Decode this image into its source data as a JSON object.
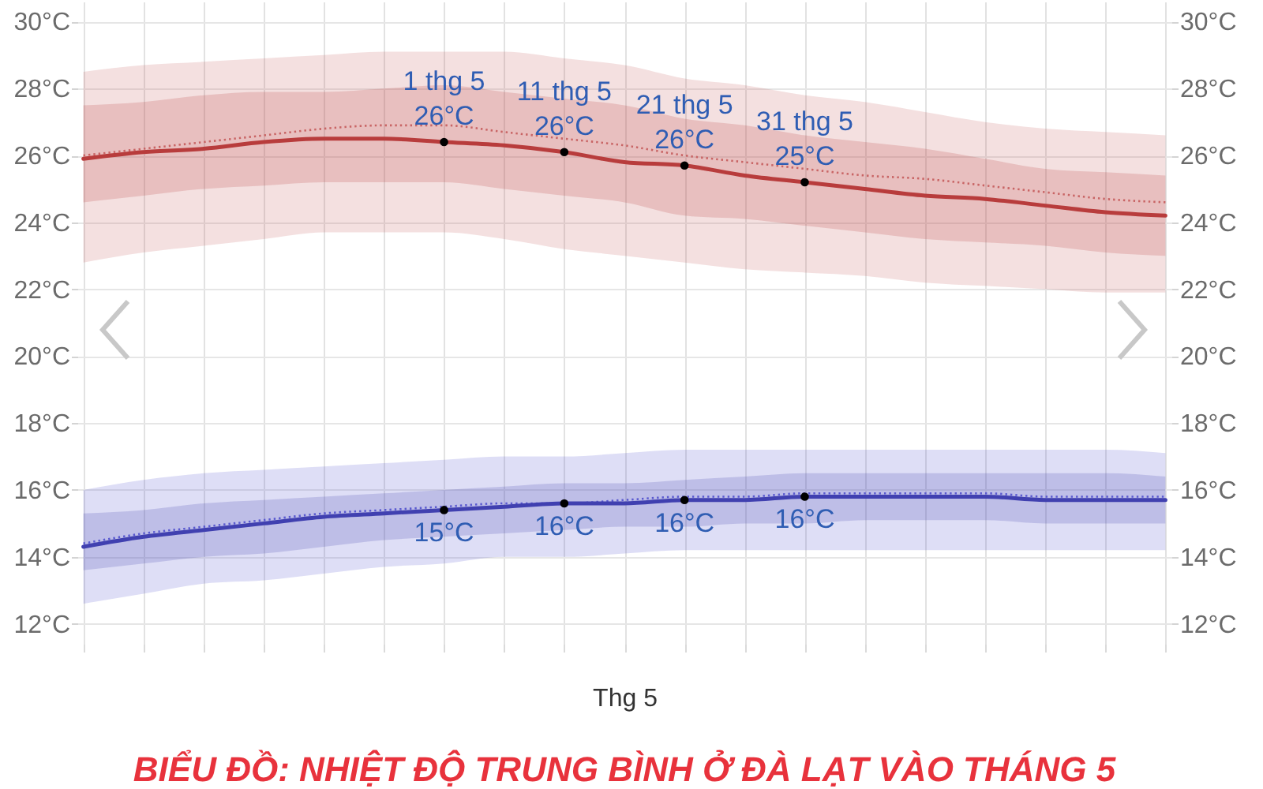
{
  "chart_data": {
    "type": "line",
    "title": "BIỂU ĐỒ: NHIỆT ĐỘ TRUNG BÌNH Ở ĐÀ LẠT VÀO THÁNG 5",
    "xlabel": "Thg 5",
    "categories": [
      null,
      null,
      null,
      null,
      null,
      null,
      null,
      null,
      null,
      null,
      null,
      null,
      null,
      null,
      null,
      null,
      null,
      null,
      null
    ],
    "ylim": [
      11.4,
      30.6
    ],
    "yticks": [
      {
        "value": 12,
        "label": "12°C"
      },
      {
        "value": 14,
        "label": "14°C"
      },
      {
        "value": 16,
        "label": "16°C"
      },
      {
        "value": 18,
        "label": "18°C"
      },
      {
        "value": 20,
        "label": "20°C"
      },
      {
        "value": 22,
        "label": "22°C"
      },
      {
        "value": 24,
        "label": "24°C"
      },
      {
        "value": 26,
        "label": "26°C"
      },
      {
        "value": 28,
        "label": "28°C"
      },
      {
        "value": 30,
        "label": "30°C"
      }
    ],
    "y2lim": [
      11.4,
      30.6
    ],
    "y2ticks": [
      {
        "value": 12,
        "label": "12°C"
      },
      {
        "value": 14,
        "label": "14°C"
      },
      {
        "value": 16,
        "label": "16°C"
      },
      {
        "value": 18,
        "label": "18°C"
      },
      {
        "value": 20,
        "label": "20°C"
      },
      {
        "value": 22,
        "label": "22°C"
      },
      {
        "value": 24,
        "label": "24°C"
      },
      {
        "value": 26,
        "label": "26°C"
      },
      {
        "value": 28,
        "label": "28°C"
      },
      {
        "value": 30,
        "label": "30°C"
      }
    ],
    "grid": true,
    "series": [
      {
        "color": "#c86464",
        "line_style": "dotted",
        "values": [
          26.0,
          26.2,
          26.4,
          26.6,
          26.8,
          26.9,
          26.9,
          26.7,
          26.5,
          26.3,
          26.0,
          25.8,
          25.6,
          25.4,
          25.3,
          25.1,
          24.9,
          24.7,
          24.6
        ],
        "lower": [
          22.8,
          23.1,
          23.3,
          23.5,
          23.7,
          23.7,
          23.7,
          23.5,
          23.2,
          23.0,
          22.8,
          22.6,
          22.5,
          22.4,
          22.2,
          22.1,
          22.0,
          21.9,
          21.9
        ],
        "upper": [
          28.5,
          28.7,
          28.8,
          28.9,
          29.0,
          29.1,
          29.1,
          29.1,
          28.9,
          28.7,
          28.3,
          28.1,
          27.8,
          27.6,
          27.3,
          27.0,
          26.8,
          26.7,
          26.6
        ]
      },
      {
        "color": "#b83c3c",
        "line_style": "solid",
        "values": [
          25.9,
          26.1,
          26.2,
          26.4,
          26.5,
          26.5,
          26.4,
          26.3,
          26.1,
          25.8,
          25.7,
          25.4,
          25.2,
          25.0,
          24.8,
          24.7,
          24.5,
          24.3,
          24.2
        ],
        "lower": [
          24.6,
          24.8,
          25.0,
          25.1,
          25.2,
          25.2,
          25.2,
          25.0,
          24.8,
          24.6,
          24.2,
          24.1,
          23.9,
          23.7,
          23.5,
          23.4,
          23.3,
          23.1,
          23.0
        ],
        "upper": [
          27.5,
          27.6,
          27.8,
          27.9,
          27.9,
          28.0,
          28.1,
          27.9,
          27.7,
          27.5,
          27.1,
          26.9,
          26.6,
          26.4,
          26.2,
          25.9,
          25.6,
          25.5,
          25.4
        ]
      },
      {
        "color": "#5a5ad0",
        "line_style": "dotted",
        "values": [
          14.4,
          14.7,
          14.9,
          15.1,
          15.3,
          15.4,
          15.5,
          15.6,
          15.6,
          15.7,
          15.8,
          15.8,
          15.9,
          15.9,
          15.9,
          15.9,
          15.8,
          15.8,
          15.8
        ],
        "lower": [
          12.6,
          12.9,
          13.2,
          13.3,
          13.5,
          13.7,
          13.8,
          14.0,
          14.0,
          14.1,
          14.2,
          14.2,
          14.2,
          14.2,
          14.2,
          14.2,
          14.2,
          14.2,
          14.2
        ],
        "upper": [
          16.0,
          16.3,
          16.5,
          16.6,
          16.7,
          16.8,
          16.9,
          17.0,
          17.0,
          17.1,
          17.2,
          17.2,
          17.2,
          17.2,
          17.2,
          17.2,
          17.2,
          17.2,
          17.1
        ]
      },
      {
        "color": "#4040b0",
        "line_style": "solid",
        "values": [
          14.3,
          14.6,
          14.8,
          15.0,
          15.2,
          15.3,
          15.4,
          15.5,
          15.6,
          15.6,
          15.7,
          15.7,
          15.8,
          15.8,
          15.8,
          15.8,
          15.7,
          15.7,
          15.7
        ],
        "lower": [
          13.6,
          13.8,
          14.0,
          14.1,
          14.3,
          14.5,
          14.6,
          14.7,
          14.8,
          14.9,
          14.9,
          15.0,
          15.0,
          15.1,
          15.1,
          15.1,
          15.0,
          15.0,
          15.0
        ],
        "upper": [
          15.3,
          15.4,
          15.6,
          15.7,
          15.8,
          15.9,
          16.0,
          16.1,
          16.2,
          16.2,
          16.3,
          16.4,
          16.5,
          16.5,
          16.5,
          16.5,
          16.5,
          16.5,
          16.4
        ]
      },
      {
        "type": "scatter",
        "color": "#000000",
        "marker": "circle",
        "values": [
          null,
          null,
          null,
          null,
          null,
          null,
          26.4,
          null,
          26.1,
          null,
          25.7,
          null,
          25.2,
          null,
          null,
          null,
          null,
          null,
          null
        ],
        "value_labels": [
          null,
          null,
          null,
          null,
          null,
          null,
          "1 thg 5\n26°C",
          null,
          "11 thg 5\n26°C",
          null,
          "21 thg 5\n26°C",
          null,
          "31 thg 5\n25°C",
          null,
          null,
          null,
          null,
          null,
          null
        ]
      },
      {
        "type": "scatter",
        "color": "#000000",
        "marker": "circle",
        "values": [
          null,
          null,
          null,
          null,
          null,
          null,
          15.4,
          null,
          15.6,
          null,
          15.7,
          null,
          15.8,
          null,
          null,
          null,
          null,
          null,
          null
        ],
        "value_labels": [
          null,
          null,
          null,
          null,
          null,
          null,
          "15°C",
          null,
          "16°C",
          null,
          "16°C",
          null,
          "16°C",
          null,
          null,
          null,
          null,
          null,
          null
        ]
      }
    ]
  }
}
